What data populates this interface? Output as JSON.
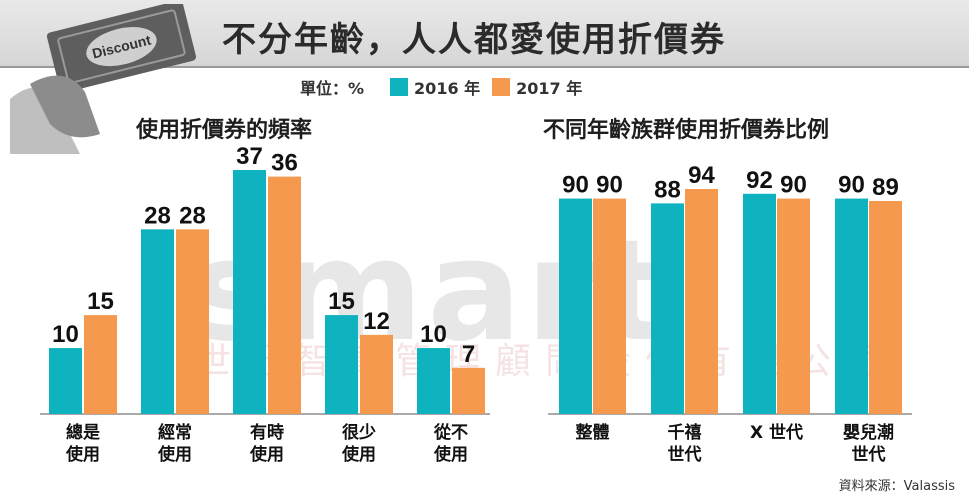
{
  "header": {
    "title": "不分年齡，人人都愛使用折價券",
    "logo_text": "Discount",
    "unit": "單位：%"
  },
  "legend": [
    {
      "name": "2016 年",
      "color": "#0fb3c0"
    },
    {
      "name": "2017 年",
      "color": "#f5994f"
    }
  ],
  "watermark": {
    "brand": "smart",
    "company": "世紀智庫管理顧問股份有限公司"
  },
  "source": "資料來源：Valassis",
  "chart_data": [
    {
      "type": "bar",
      "title": "使用折價券的頻率",
      "categories": [
        [
          "總是",
          "使用"
        ],
        [
          "經常",
          "使用"
        ],
        [
          "有時",
          "使用"
        ],
        [
          "很少",
          "使用"
        ],
        [
          "從不",
          "使用"
        ]
      ],
      "series": [
        {
          "name": "2016 年",
          "values": [
            10,
            28,
            37,
            15,
            10
          ]
        },
        {
          "name": "2017 年",
          "values": [
            15,
            28,
            36,
            12,
            7
          ]
        }
      ],
      "ylim": [
        0,
        37
      ]
    },
    {
      "type": "bar",
      "title": "不同年齡族群使用折價券比例",
      "categories": [
        [
          "整體"
        ],
        [
          "千禧",
          "世代"
        ],
        [
          "X 世代"
        ],
        [
          "嬰兒潮",
          "世代"
        ]
      ],
      "series": [
        {
          "name": "2016 年",
          "values": [
            90,
            88,
            92,
            90
          ]
        },
        {
          "name": "2017 年",
          "values": [
            90,
            94,
            90,
            89
          ]
        }
      ],
      "ylim": [
        0,
        94
      ]
    }
  ]
}
